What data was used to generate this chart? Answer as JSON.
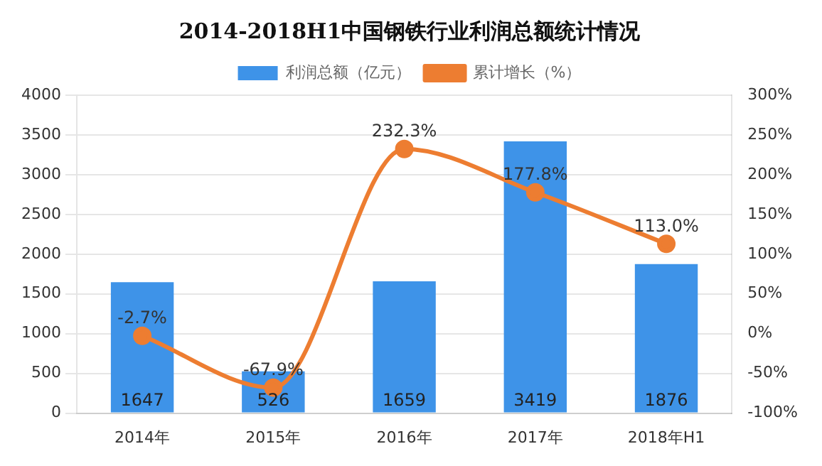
{
  "chart_data": {
    "type": "bar",
    "title": "2014-2018H1中国钢铁行业利润总额统计情况",
    "categories": [
      "2014年",
      "2015年",
      "2016年",
      "2017年",
      "2018年H1"
    ],
    "series": [
      {
        "name": "利润总额（亿元）",
        "color": "#3e93e8",
        "values": [
          1647,
          526,
          1659,
          3419,
          1876
        ],
        "value_labels": [
          "1647",
          "526",
          "1659",
          "3419",
          "1876"
        ]
      },
      {
        "name": "累计增长（%）",
        "type": "line",
        "axis": "y2",
        "color": "#ed7d31",
        "marker": "circle",
        "values": [
          -2.7,
          -67.9,
          232.3,
          177.8,
          113.0
        ],
        "value_labels": [
          "-2.7%",
          "-67.9%",
          "232.3%",
          "177.8%",
          "113.0%"
        ]
      }
    ],
    "ylim": [
      0,
      4000
    ],
    "yticks": [
      0,
      500,
      1000,
      1500,
      2000,
      2500,
      3000,
      3500,
      4000
    ],
    "y2lim": [
      -100,
      300
    ],
    "y2ticks": [
      {
        "value": -100,
        "label": "-100%"
      },
      {
        "value": -50,
        "label": "-50%"
      },
      {
        "value": 0,
        "label": "0%"
      },
      {
        "value": 50,
        "label": "50%"
      },
      {
        "value": 100,
        "label": "100%"
      },
      {
        "value": 150,
        "label": "150%"
      },
      {
        "value": 200,
        "label": "200%"
      },
      {
        "value": 250,
        "label": "250%"
      },
      {
        "value": 300,
        "label": "300%"
      }
    ],
    "grid": "y",
    "legend": "top"
  }
}
